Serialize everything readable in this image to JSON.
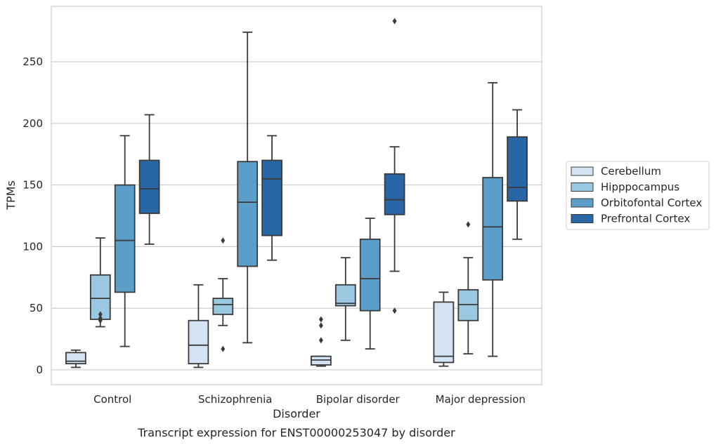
{
  "chart_data": {
    "type": "box",
    "xlabel": "Disorder",
    "ylabel": "TPMs",
    "caption": "Transcript expression for ENST00000253047 by disorder",
    "ylim": [
      -12,
      295
    ],
    "yticks": [
      0,
      50,
      100,
      150,
      200,
      250
    ],
    "grid": "horizontal",
    "legend_position": "right",
    "categories": [
      "Control",
      "Schizophrenia",
      "Bipolar disorder",
      "Major depression"
    ],
    "series": [
      {
        "name": "Cerebellum",
        "color": "#d3e3f3",
        "boxes": [
          {
            "whisker_low": 2,
            "q1": 5,
            "median": 7,
            "q3": 14,
            "whisker_high": 16,
            "outliers": []
          },
          {
            "whisker_low": 2,
            "q1": 5,
            "median": 20,
            "q3": 40,
            "whisker_high": 69,
            "outliers": []
          },
          {
            "whisker_low": 3,
            "q1": 4,
            "median": 8,
            "q3": 11,
            "whisker_high": 11,
            "outliers": [
              24,
              36,
              41
            ]
          },
          {
            "whisker_low": 3,
            "q1": 6,
            "median": 11,
            "q3": 55,
            "whisker_high": 63,
            "outliers": []
          }
        ]
      },
      {
        "name": "Hipppocampus",
        "color": "#9ac8e0",
        "boxes": [
          {
            "whisker_low": 35,
            "q1": 41,
            "median": 58,
            "q3": 77,
            "whisker_high": 107,
            "outliers": [
              40,
              42,
              45
            ]
          },
          {
            "whisker_low": 36,
            "q1": 45,
            "median": 53,
            "q3": 58,
            "whisker_high": 74,
            "outliers": [
              17,
              105
            ]
          },
          {
            "whisker_low": 24,
            "q1": 52,
            "median": 54,
            "q3": 69,
            "whisker_high": 91,
            "outliers": []
          },
          {
            "whisker_low": 13,
            "q1": 40,
            "median": 53,
            "q3": 65,
            "whisker_high": 91,
            "outliers": [
              118
            ]
          }
        ]
      },
      {
        "name": "Orbitofontal Cortex",
        "color": "#5a9ec9",
        "boxes": [
          {
            "whisker_low": 19,
            "q1": 63,
            "median": 105,
            "q3": 150,
            "whisker_high": 190,
            "outliers": []
          },
          {
            "whisker_low": 22,
            "q1": 84,
            "median": 136,
            "q3": 169,
            "whisker_high": 274,
            "outliers": []
          },
          {
            "whisker_low": 17,
            "q1": 48,
            "median": 74,
            "q3": 106,
            "whisker_high": 123,
            "outliers": []
          },
          {
            "whisker_low": 11,
            "q1": 73,
            "median": 116,
            "q3": 156,
            "whisker_high": 233,
            "outliers": []
          }
        ]
      },
      {
        "name": "Prefrontal Cortex",
        "color": "#2966a6",
        "boxes": [
          {
            "whisker_low": 102,
            "q1": 127,
            "median": 147,
            "q3": 170,
            "whisker_high": 207,
            "outliers": []
          },
          {
            "whisker_low": 89,
            "q1": 109,
            "median": 155,
            "q3": 170,
            "whisker_high": 190,
            "outliers": []
          },
          {
            "whisker_low": 80,
            "q1": 126,
            "median": 138,
            "q3": 159,
            "whisker_high": 181,
            "outliers": [
              48,
              283
            ]
          },
          {
            "whisker_low": 106,
            "q1": 137,
            "median": 148,
            "q3": 189,
            "whisker_high": 211,
            "outliers": []
          }
        ]
      }
    ]
  }
}
